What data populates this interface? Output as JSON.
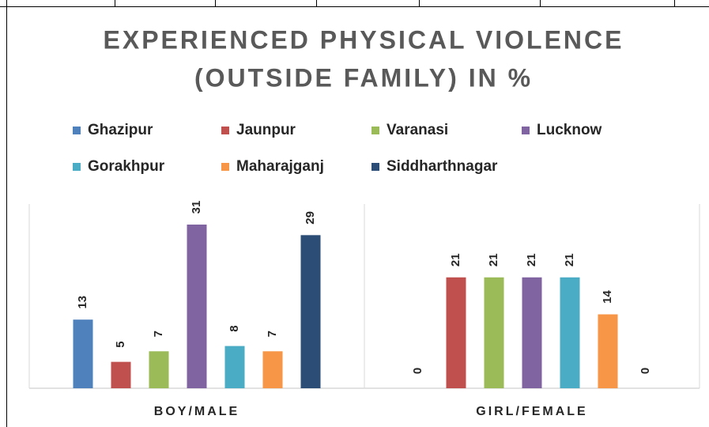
{
  "chart_data": {
    "type": "bar",
    "title": [
      "EXPERIENCED PHYSICAL VIOLENCE",
      "(OUTSIDE FAMILY) IN %"
    ],
    "categories": [
      "BOY/MALE",
      "GIRL/FEMALE"
    ],
    "series": [
      {
        "name": "Ghazipur",
        "color": "#4f81bd",
        "values": [
          13,
          0
        ]
      },
      {
        "name": "Jaunpur",
        "color": "#c0504d",
        "values": [
          5,
          21
        ]
      },
      {
        "name": "Varanasi",
        "color": "#9bbb59",
        "values": [
          7,
          21
        ]
      },
      {
        "name": "Lucknow",
        "color": "#8064a2",
        "values": [
          31,
          21
        ]
      },
      {
        "name": "Gorakhpur",
        "color": "#4bacc6",
        "values": [
          8,
          21
        ]
      },
      {
        "name": "Maharajganj",
        "color": "#f79646",
        "values": [
          7,
          14
        ]
      },
      {
        "name": "Siddharthnagar",
        "color": "#2c4d75",
        "values": [
          29,
          0
        ]
      }
    ]
  }
}
